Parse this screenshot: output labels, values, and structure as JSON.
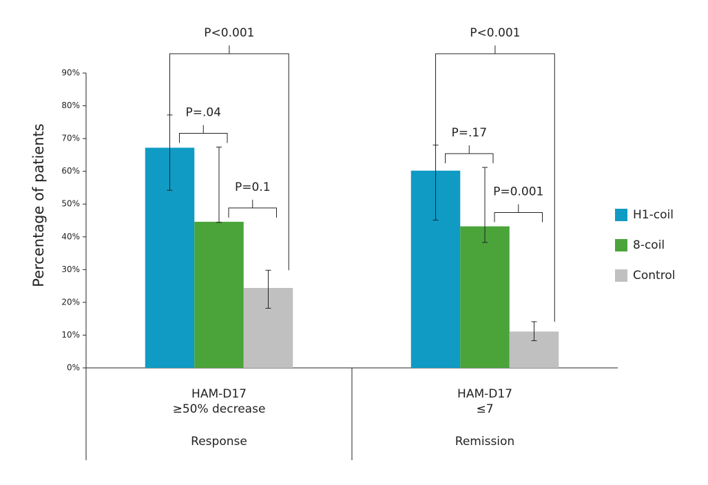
{
  "chart_data": {
    "type": "bar",
    "y_label": "Percentage of patients",
    "categories": [
      "Response",
      "Remission"
    ],
    "category_sublabels": [
      [
        "HAM-D17",
        "≥50% decrease"
      ],
      [
        "HAM-D17",
        "≤7"
      ]
    ],
    "series": [
      {
        "name": "H1-coil",
        "color": "#0f9bc4",
        "values": [
          67.2,
          60.2
        ],
        "lower": [
          54.2,
          45.1
        ],
        "upper": [
          77.2,
          68.0
        ]
      },
      {
        "name": "8-coil",
        "color": "#4aa43a",
        "values": [
          44.6,
          43.2
        ],
        "lower": [
          44.4,
          38.3
        ],
        "upper": [
          67.4,
          61.2
        ]
      },
      {
        "name": "Control",
        "color": "#c0c0c0",
        "values": [
          24.4,
          11.1
        ],
        "lower": [
          18.2,
          8.3
        ],
        "upper": [
          29.8,
          14.1
        ]
      }
    ],
    "comparisons": [
      [
        {
          "label": "P<0.001",
          "between": [
            "H1-coil",
            "Control"
          ]
        },
        {
          "label": "P=.04",
          "between": [
            "H1-coil",
            "8-coil"
          ]
        },
        {
          "label": "P=0.1",
          "between": [
            "8-coil",
            "Control"
          ]
        }
      ],
      [
        {
          "label": "P<0.001",
          "between": [
            "H1-coil",
            "Control"
          ]
        },
        {
          "label": "P=.17",
          "between": [
            "H1-coil",
            "8-coil"
          ]
        },
        {
          "label": "P=0.001",
          "between": [
            "8-coil",
            "Control"
          ]
        }
      ]
    ],
    "ylim": [
      0,
      90
    ],
    "yticks": [
      {
        "value": 0,
        "label": "0%"
      },
      {
        "value": 10,
        "label": "10%"
      },
      {
        "value": 20,
        "label": "20%"
      },
      {
        "value": 30,
        "label": "30%"
      },
      {
        "value": 40,
        "label": "40%"
      },
      {
        "value": 50,
        "label": "50%"
      },
      {
        "value": 60,
        "label": "60%"
      },
      {
        "value": 70,
        "label": "70%"
      },
      {
        "value": 80,
        "label": "80%"
      },
      {
        "value": 90,
        "label": "90%"
      }
    ],
    "grid": false,
    "legend_position": "right"
  }
}
